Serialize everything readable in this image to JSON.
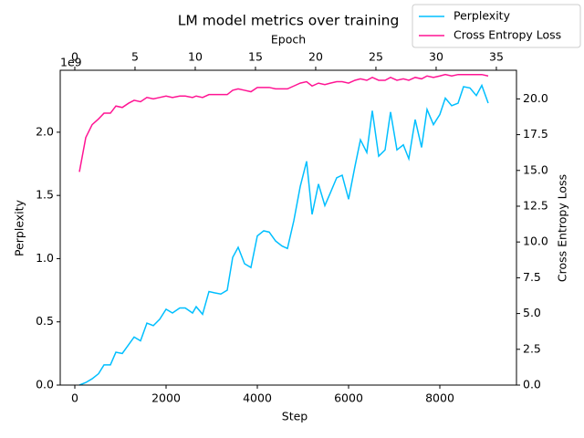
{
  "chart_data": {
    "type": "line",
    "title": "LM model metrics over training",
    "xlabel": "Step",
    "ylabel": "Perplexity",
    "y2label": "Cross Entropy Loss",
    "x2label": "Epoch",
    "y_offset_label": "1e9",
    "legend": "upper right",
    "x": [
      100,
      240,
      380,
      520,
      640,
      780,
      900,
      1040,
      1180,
      1300,
      1440,
      1580,
      1720,
      1860,
      2000,
      2140,
      2300,
      2420,
      2580,
      2660,
      2800,
      2940,
      3060,
      3200,
      3340,
      3460,
      3580,
      3720,
      3860,
      4000,
      4140,
      4260,
      4400,
      4540,
      4660,
      4800,
      4940,
      5080,
      5200,
      5340,
      5480,
      5600,
      5740,
      5860,
      6000,
      6140,
      6260,
      6400,
      6520,
      6660,
      6800,
      6920,
      7060,
      7200,
      7320,
      7460,
      7600,
      7720,
      7860,
      8000,
      8120,
      8260,
      8400,
      8520,
      8660,
      8800,
      8920,
      9060
    ],
    "series": [
      {
        "name": "Perplexity",
        "color": "#00bfff",
        "axis": "y",
        "values": [
          0.0,
          0.02,
          0.05,
          0.09,
          0.16,
          0.16,
          0.26,
          0.25,
          0.32,
          0.38,
          0.35,
          0.49,
          0.47,
          0.52,
          0.6,
          0.57,
          0.61,
          0.61,
          0.57,
          0.62,
          0.56,
          0.74,
          0.73,
          0.72,
          0.75,
          1.01,
          1.09,
          0.96,
          0.93,
          1.18,
          1.22,
          1.21,
          1.14,
          1.1,
          1.08,
          1.3,
          1.57,
          1.77,
          1.35,
          1.59,
          1.42,
          1.52,
          1.64,
          1.66,
          1.47,
          1.73,
          1.94,
          1.84,
          2.17,
          1.81,
          1.86,
          2.16,
          1.86,
          1.9,
          1.79,
          2.1,
          1.88,
          2.18,
          2.06,
          2.14,
          2.27,
          2.21,
          2.23,
          2.36,
          2.35,
          2.29,
          2.37,
          2.23
        ]
      },
      {
        "name": "Cross Entropy Loss",
        "color": "#ff1493",
        "axis": "y2",
        "values": [
          14.9,
          17.3,
          18.2,
          18.6,
          19.0,
          19.0,
          19.5,
          19.4,
          19.7,
          19.9,
          19.8,
          20.1,
          20.0,
          20.1,
          20.2,
          20.1,
          20.2,
          20.2,
          20.1,
          20.2,
          20.1,
          20.3,
          20.3,
          20.3,
          20.3,
          20.6,
          20.7,
          20.6,
          20.5,
          20.8,
          20.8,
          20.8,
          20.7,
          20.7,
          20.7,
          20.9,
          21.1,
          21.2,
          20.9,
          21.1,
          21.0,
          21.1,
          21.2,
          21.2,
          21.1,
          21.3,
          21.4,
          21.3,
          21.5,
          21.3,
          21.3,
          21.5,
          21.3,
          21.4,
          21.3,
          21.5,
          21.4,
          21.6,
          21.5,
          21.6,
          21.7,
          21.6,
          21.7,
          21.7,
          21.7,
          21.7,
          21.7,
          21.6
        ]
      }
    ],
    "xlim": [
      -320,
      9680
    ],
    "xticks": [
      0,
      2000,
      4000,
      6000,
      8000
    ],
    "x2lim": [
      -1.21,
      36.67
    ],
    "x2ticks": [
      0,
      5,
      10,
      15,
      20,
      25,
      30,
      35
    ],
    "ylim": [
      0,
      2.49
    ],
    "yticks": [
      {
        "value": 0,
        "label": "0.0"
      },
      0.5,
      {
        "value": 1,
        "label": "1.0"
      },
      1.5,
      {
        "value": 2,
        "label": "2.0"
      }
    ],
    "y2lim": [
      0,
      22
    ],
    "y2ticks": [
      {
        "value": 0,
        "label": "0.0"
      },
      2.5,
      {
        "value": 5,
        "label": "5.0"
      },
      7.5,
      {
        "value": 10,
        "label": "10.0"
      },
      12.5,
      {
        "value": 15,
        "label": "15.0"
      },
      17.5,
      {
        "value": 20,
        "label": "20.0"
      }
    ]
  }
}
